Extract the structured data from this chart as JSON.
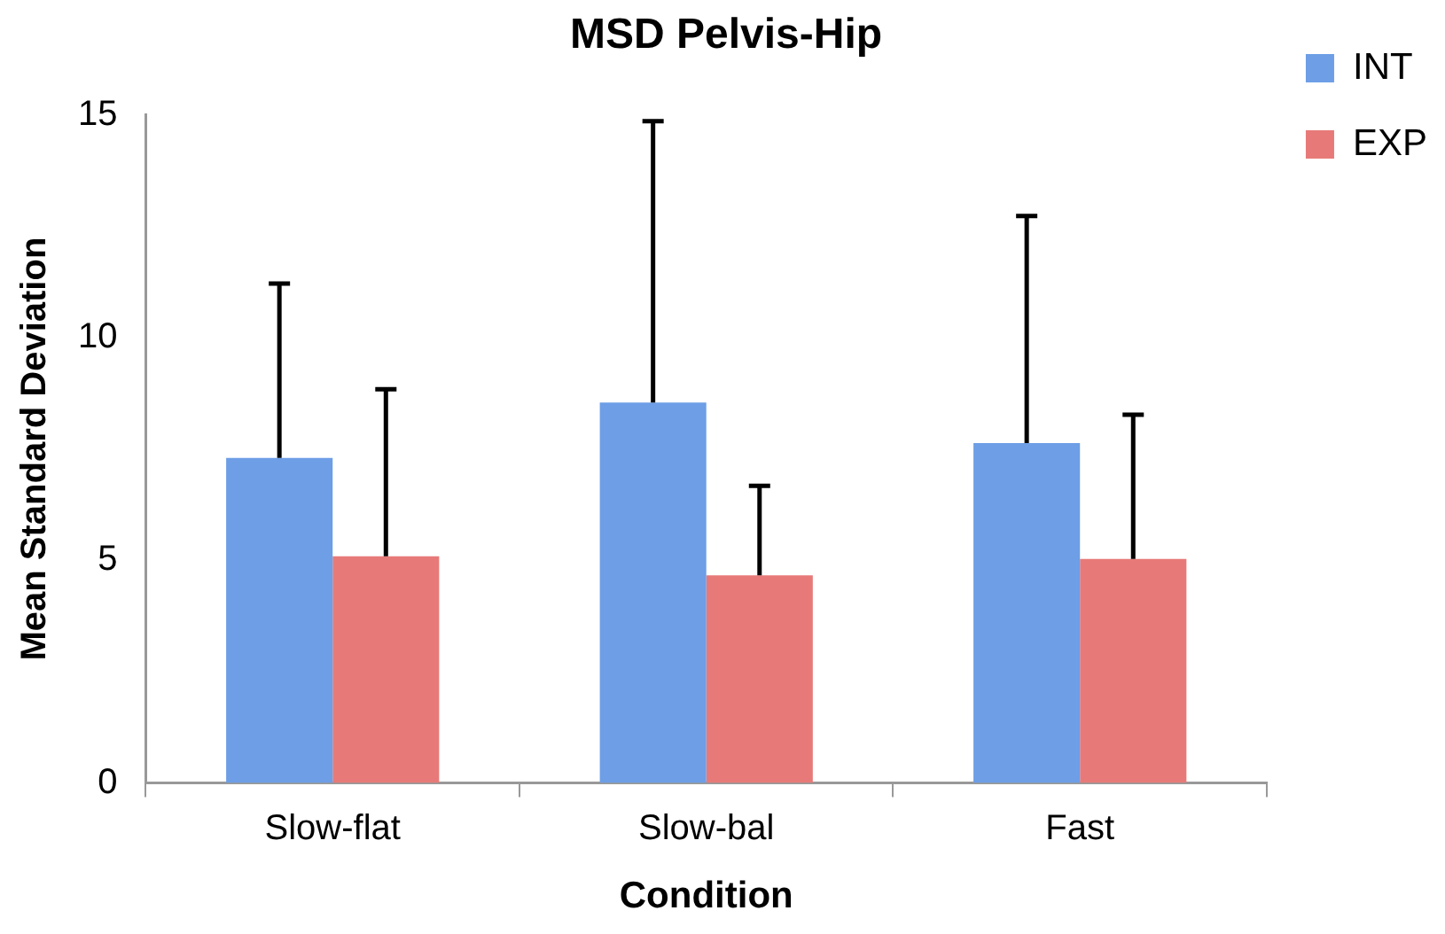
{
  "chart_data": {
    "type": "bar",
    "title": "MSD Pelvis-Hip",
    "xlabel": "Condition",
    "ylabel": "Mean Standard Deviation",
    "categories": [
      "Slow-flat",
      "Slow-bal",
      "Fast"
    ],
    "series": [
      {
        "name": "INT",
        "color": "#6d9ee6",
        "values": [
          7.3,
          8.54,
          7.63
        ],
        "errors": [
          [
            7.3,
            11.21
          ],
          [
            8.54,
            14.86
          ],
          [
            7.63,
            12.73
          ]
        ]
      },
      {
        "name": "EXP",
        "color": "#e77a78",
        "values": [
          5.09,
          4.66,
          5.03
        ],
        "errors": [
          [
            5.09,
            8.84
          ],
          [
            4.66,
            6.67
          ],
          [
            5.03,
            8.27
          ]
        ]
      }
    ],
    "ylim": [
      0,
      15
    ],
    "yticks": [
      0,
      5,
      10,
      15
    ],
    "grid": false,
    "legend": "top right"
  }
}
